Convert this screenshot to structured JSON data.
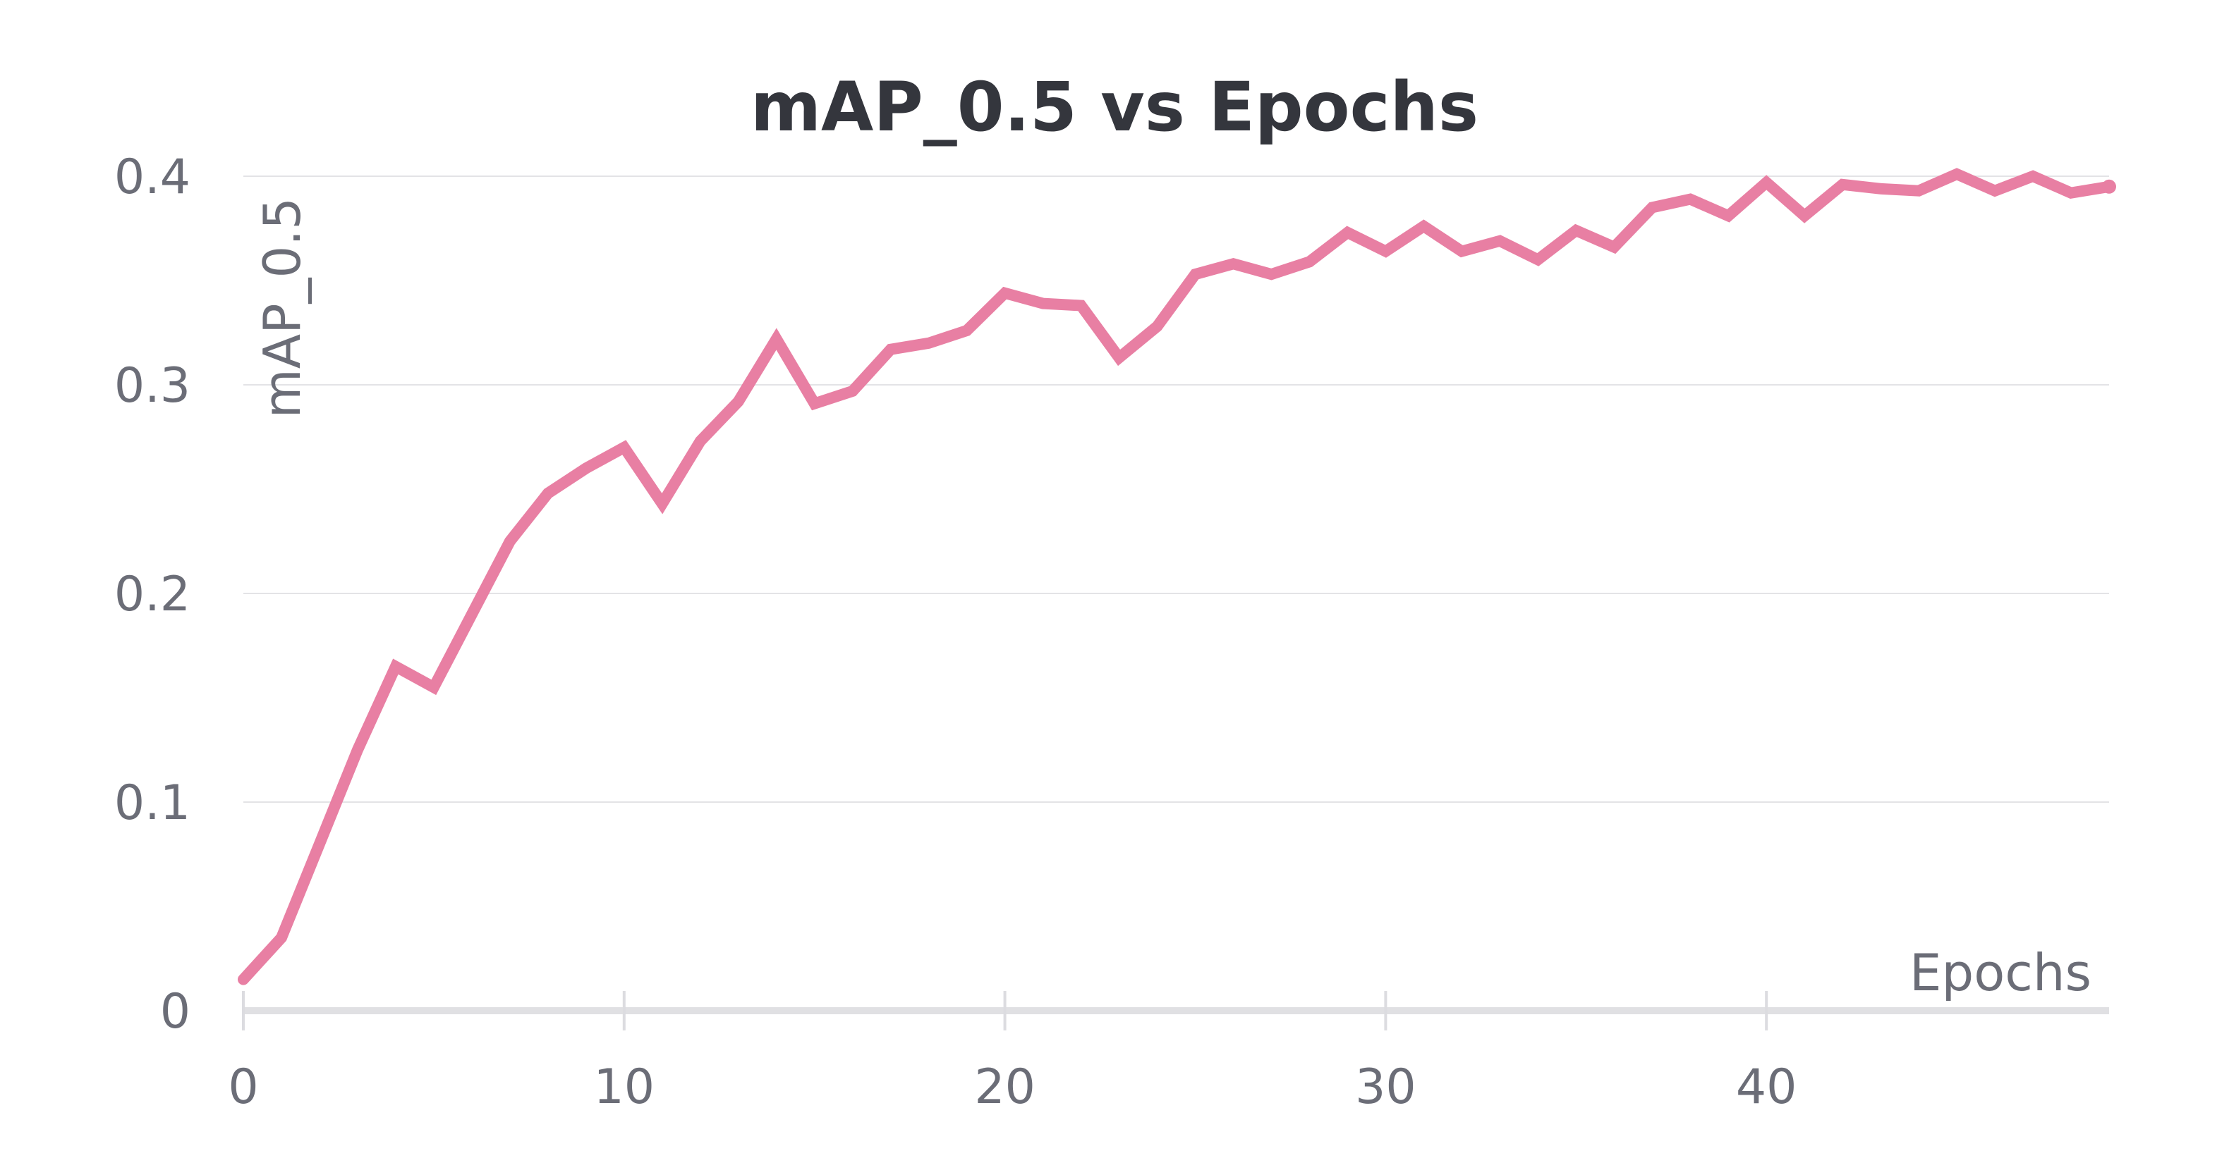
{
  "chart_data": {
    "type": "line",
    "title": "mAP_0.5 vs Epochs",
    "xlabel": "Epochs",
    "ylabel": "mAP_0.5",
    "xlim": [
      0,
      49
    ],
    "ylim": [
      0,
      0.4
    ],
    "x_ticks": [
      "0",
      "10",
      "20",
      "30",
      "40"
    ],
    "x_tick_values": [
      0,
      10,
      20,
      30,
      40
    ],
    "y_ticks": [
      "0",
      "0.1",
      "0.2",
      "0.3",
      "0.4"
    ],
    "y_tick_values": [
      0,
      0.1,
      0.2,
      0.3,
      0.4
    ],
    "grid": true,
    "colors": {
      "line": "#e87fa3",
      "grid": "#e3e3e6",
      "text": "#6b6d77",
      "title": "#34363d"
    },
    "series": [
      {
        "x": [
          0,
          1,
          2,
          3,
          4,
          5,
          6,
          7,
          8,
          9,
          10,
          11,
          12,
          13,
          14,
          15,
          16,
          17,
          18,
          19,
          20,
          21,
          22,
          23,
          24,
          25,
          26,
          27,
          28,
          29,
          30,
          31,
          32,
          33,
          34,
          35,
          36,
          37,
          38,
          39,
          40,
          41,
          42,
          43,
          44,
          45,
          46,
          47,
          48,
          49
        ],
        "values": [
          0.015,
          0.035,
          0.08,
          0.125,
          0.165,
          0.155,
          0.19,
          0.225,
          0.248,
          0.26,
          0.27,
          0.243,
          0.273,
          0.292,
          0.322,
          0.291,
          0.297,
          0.317,
          0.32,
          0.326,
          0.344,
          0.339,
          0.338,
          0.313,
          0.328,
          0.353,
          0.358,
          0.353,
          0.359,
          0.373,
          0.364,
          0.376,
          0.364,
          0.369,
          0.36,
          0.374,
          0.366,
          0.385,
          0.389,
          0.381,
          0.397,
          0.381,
          0.396,
          0.394,
          0.393,
          0.401,
          0.393,
          0.4,
          0.392,
          0.395
        ]
      }
    ]
  }
}
